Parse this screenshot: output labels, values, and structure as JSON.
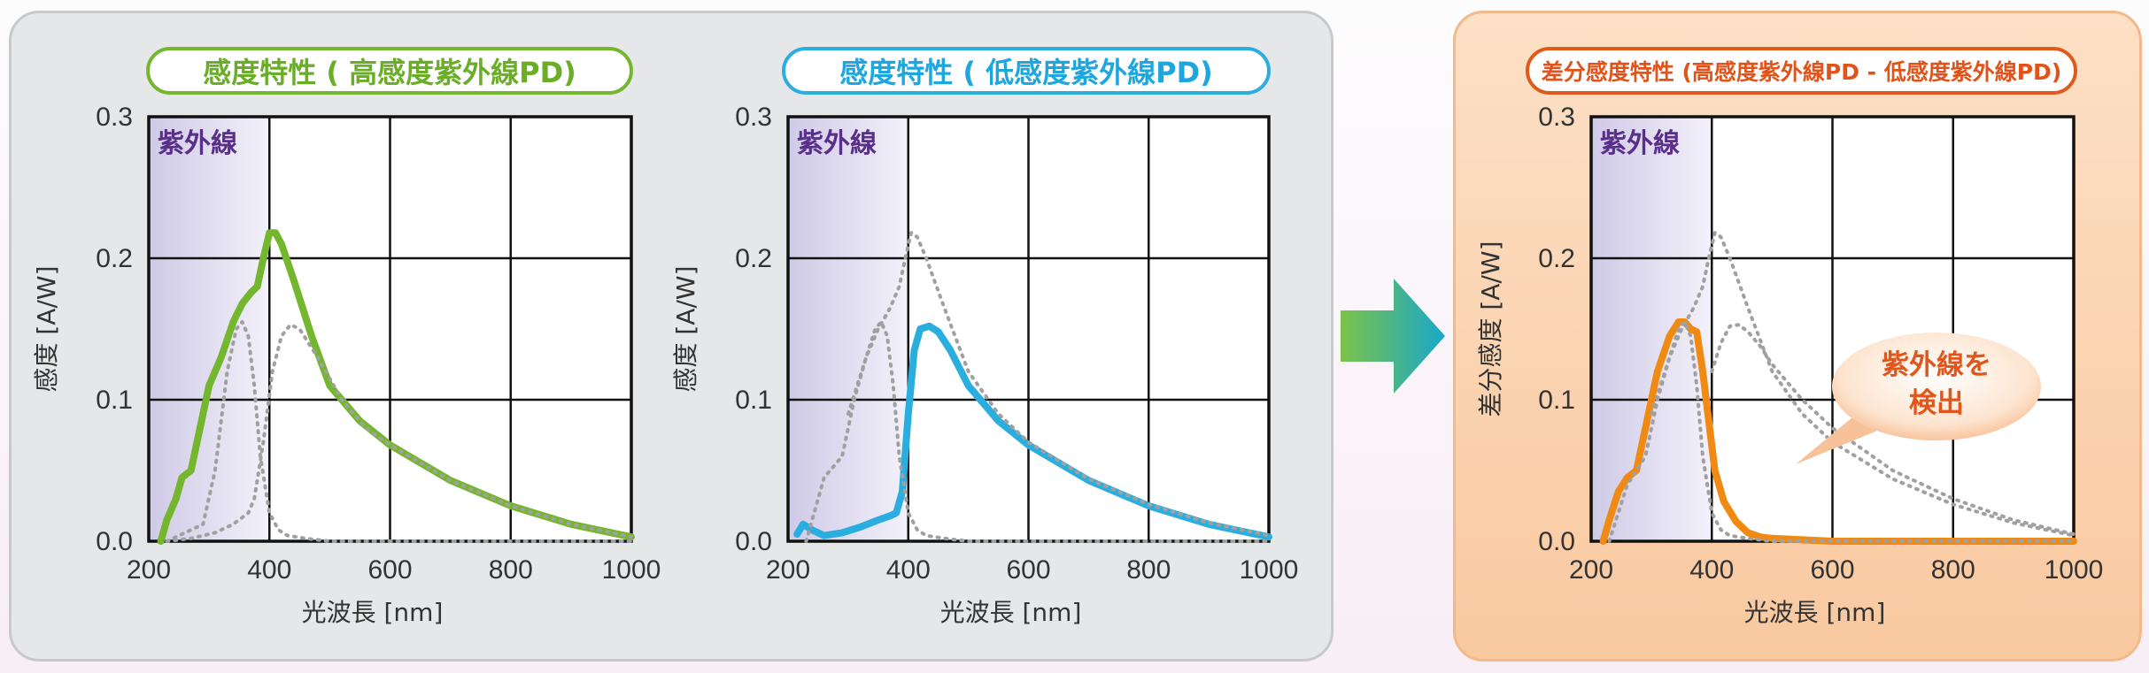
{
  "panels": {
    "left_pill_1": "感度特性 ( 高感度紫外線PD)",
    "left_pill_2": "感度特性 ( 低感度紫外線PD)",
    "right_pill": "差分感度特性 (高感度紫外線PD - 低感度紫外線PD)"
  },
  "bubble": {
    "line1": "紫外線を",
    "line2": "検出"
  },
  "colors": {
    "green": "#74b72e",
    "blue": "#2aaee0",
    "orange": "#f08a12",
    "dotted": "#a0a0a0",
    "uv_band": "#cfcae6",
    "uv_text": "#5a2f8c"
  },
  "chart_data": [
    {
      "type": "line",
      "xlabel": "光波長 [nm]",
      "ylabel": "感度 [A/W]",
      "xlim": [
        200,
        1000
      ],
      "ylim": [
        0,
        0.3
      ],
      "xticks": [
        "200",
        "400",
        "600",
        "800",
        "1000"
      ],
      "yticks": [
        "0.0",
        "0.1",
        "0.2",
        "0.3"
      ],
      "band_label": "紫外線",
      "band_range": [
        200,
        400
      ],
      "grid": true,
      "series": [
        {
          "style": "solid",
          "color": "#74b72e",
          "x": [
            220,
            230,
            245,
            255,
            270,
            285,
            300,
            320,
            340,
            355,
            370,
            380,
            390,
            400,
            410,
            420,
            440,
            470,
            500,
            550,
            600,
            700,
            800,
            900,
            1000
          ],
          "y": [
            0,
            0.015,
            0.03,
            0.045,
            0.05,
            0.08,
            0.11,
            0.13,
            0.155,
            0.168,
            0.176,
            0.18,
            0.2,
            0.218,
            0.218,
            0.21,
            0.185,
            0.145,
            0.11,
            0.085,
            0.068,
            0.043,
            0.025,
            0.012,
            0.003
          ]
        },
        {
          "style": "dotted",
          "color": "#a0a0a0",
          "x": [
            230,
            260,
            290,
            310,
            330,
            345,
            355,
            365,
            375,
            385,
            400,
            415,
            430,
            445,
            460,
            500,
            550,
            600,
            700,
            800,
            900,
            1000
          ],
          "y": [
            0,
            0.006,
            0.012,
            0.05,
            0.12,
            0.15,
            0.155,
            0.145,
            0.11,
            0.06,
            0.02,
            0.008,
            0.004,
            0.003,
            0.002,
            0.0,
            0.0,
            0.0,
            0.0,
            0.0,
            0.0,
            0.0
          ]
        },
        {
          "style": "dotted",
          "color": "#a0a0a0",
          "x": [
            230,
            270,
            310,
            340,
            365,
            375,
            390,
            405,
            420,
            435,
            450,
            480,
            520,
            560,
            600,
            700,
            800,
            900,
            1000
          ],
          "y": [
            0,
            0.002,
            0.006,
            0.012,
            0.02,
            0.03,
            0.07,
            0.12,
            0.145,
            0.153,
            0.15,
            0.13,
            0.1,
            0.08,
            0.068,
            0.043,
            0.025,
            0.012,
            0.003
          ]
        }
      ]
    },
    {
      "type": "line",
      "xlabel": "光波長 [nm]",
      "ylabel": "感度 [A/W]",
      "xlim": [
        200,
        1000
      ],
      "ylim": [
        0,
        0.3
      ],
      "xticks": [
        "200",
        "400",
        "600",
        "800",
        "1000"
      ],
      "yticks": [
        "0.0",
        "0.1",
        "0.2",
        "0.3"
      ],
      "band_label": "紫外線",
      "band_range": [
        200,
        400
      ],
      "grid": true,
      "series": [
        {
          "style": "solid",
          "color": "#2aaee0",
          "x": [
            215,
            225,
            240,
            260,
            290,
            320,
            350,
            370,
            380,
            390,
            400,
            410,
            420,
            435,
            450,
            470,
            500,
            550,
            600,
            700,
            800,
            900,
            1000
          ],
          "y": [
            0.005,
            0.012,
            0.008,
            0.004,
            0.006,
            0.01,
            0.015,
            0.018,
            0.02,
            0.035,
            0.09,
            0.135,
            0.15,
            0.152,
            0.148,
            0.135,
            0.11,
            0.085,
            0.068,
            0.043,
            0.025,
            0.012,
            0.003
          ]
        },
        {
          "style": "dotted",
          "color": "#a0a0a0",
          "x": [
            230,
            260,
            290,
            310,
            330,
            345,
            355,
            365,
            375,
            385,
            400,
            415,
            430,
            445,
            460,
            500,
            550,
            600,
            700,
            800,
            900,
            1000
          ],
          "y": [
            0,
            0.045,
            0.06,
            0.1,
            0.13,
            0.15,
            0.155,
            0.145,
            0.11,
            0.06,
            0.02,
            0.008,
            0.004,
            0.003,
            0.002,
            0.0,
            0.0,
            0.0,
            0.0,
            0.0,
            0.0,
            0.0
          ]
        },
        {
          "style": "dotted",
          "color": "#a0a0a0",
          "x": [
            300,
            330,
            350,
            370,
            385,
            395,
            405,
            415,
            430,
            460,
            500,
            550,
            600,
            700,
            800,
            900,
            1000
          ],
          "y": [
            0.09,
            0.13,
            0.15,
            0.165,
            0.18,
            0.2,
            0.218,
            0.215,
            0.2,
            0.165,
            0.12,
            0.09,
            0.07,
            0.044,
            0.026,
            0.013,
            0.004
          ]
        }
      ]
    },
    {
      "type": "line",
      "xlabel": "光波長 [nm]",
      "ylabel": "差分感度 [A/W]",
      "xlim": [
        200,
        1000
      ],
      "ylim": [
        0,
        0.3
      ],
      "xticks": [
        "200",
        "400",
        "600",
        "800",
        "1000"
      ],
      "yticks": [
        "0.0",
        "0.1",
        "0.2",
        "0.3"
      ],
      "band_label": "紫外線",
      "band_range": [
        200,
        400
      ],
      "grid": true,
      "series": [
        {
          "style": "solid",
          "color": "#f08a12",
          "x": [
            220,
            230,
            245,
            260,
            275,
            290,
            310,
            330,
            345,
            355,
            365,
            375,
            385,
            395,
            405,
            420,
            440,
            460,
            480,
            500,
            550,
            600,
            700,
            800,
            900,
            1000
          ],
          "y": [
            0,
            0.015,
            0.035,
            0.045,
            0.05,
            0.08,
            0.12,
            0.145,
            0.155,
            0.155,
            0.15,
            0.148,
            0.12,
            0.085,
            0.05,
            0.028,
            0.014,
            0.006,
            0.003,
            0.002,
            0.001,
            0.0,
            0.0,
            0.0,
            0.0,
            0.0
          ]
        },
        {
          "style": "dotted",
          "color": "#a0a0a0",
          "x": [
            230,
            260,
            290,
            310,
            330,
            345,
            355,
            365,
            375,
            385,
            400,
            415,
            430,
            445,
            460,
            500,
            550,
            600,
            700,
            800,
            900,
            1000
          ],
          "y": [
            0,
            0.04,
            0.06,
            0.1,
            0.13,
            0.15,
            0.155,
            0.145,
            0.11,
            0.06,
            0.02,
            0.008,
            0.004,
            0.003,
            0.002,
            0.0,
            0.0,
            0.0,
            0.0,
            0.0,
            0.0,
            0.0
          ]
        },
        {
          "style": "dotted",
          "color": "#a0a0a0",
          "x": [
            300,
            330,
            350,
            370,
            385,
            395,
            405,
            415,
            430,
            460,
            500,
            550,
            600,
            700,
            800,
            900,
            1000
          ],
          "y": [
            0.09,
            0.13,
            0.15,
            0.165,
            0.18,
            0.2,
            0.218,
            0.215,
            0.2,
            0.165,
            0.12,
            0.09,
            0.07,
            0.044,
            0.026,
            0.013,
            0.004
          ]
        },
        {
          "style": "dotted",
          "color": "#a0a0a0",
          "x": [
            400,
            415,
            430,
            445,
            460,
            480,
            500,
            550,
            600,
            700,
            800,
            900,
            1000
          ],
          "y": [
            0.12,
            0.14,
            0.152,
            0.153,
            0.148,
            0.138,
            0.125,
            0.1,
            0.08,
            0.05,
            0.03,
            0.015,
            0.005
          ]
        }
      ]
    }
  ]
}
